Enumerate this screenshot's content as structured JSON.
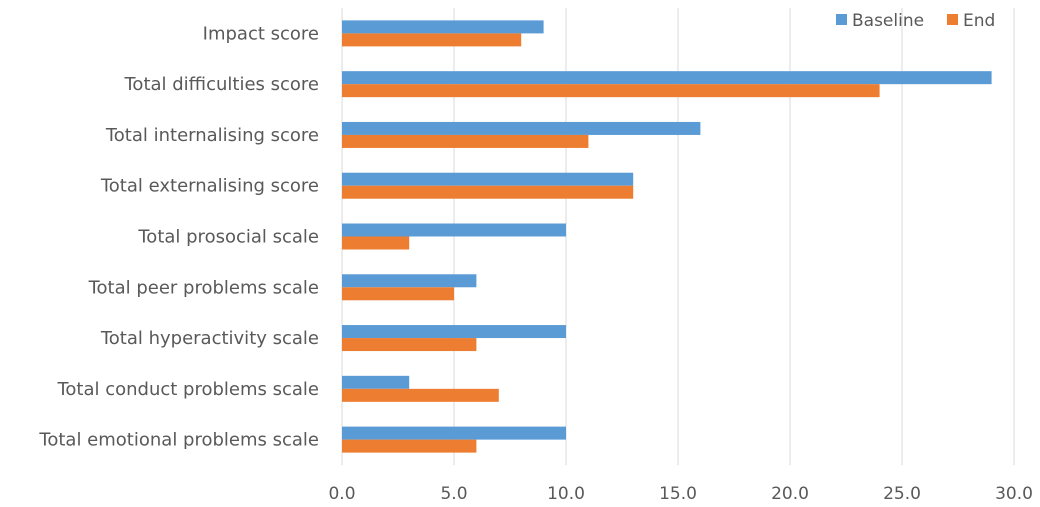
{
  "chart_data": {
    "type": "bar",
    "orientation": "horizontal",
    "title": "",
    "xlabel": "",
    "ylabel": "",
    "categories": [
      "Impact score",
      "Total difficulties score",
      "Total internalising score",
      "Total externalising score",
      "Total prosocial scale",
      "Total peer problems scale",
      "Total hyperactivity scale",
      "Total conduct problems scale",
      "Total emotional problems scale"
    ],
    "series": [
      {
        "name": "Baseline",
        "color": "#5b9bd5",
        "values": [
          9,
          29,
          16,
          13,
          10,
          6,
          10,
          3,
          10
        ]
      },
      {
        "name": "End",
        "color": "#ed7d31",
        "values": [
          8,
          24,
          11,
          13,
          3,
          5,
          6,
          7,
          6
        ]
      }
    ],
    "xlim": [
      0,
      30
    ],
    "xticks": [
      "0.0",
      "5.0",
      "10.0",
      "15.0",
      "20.0",
      "25.0",
      "30.0"
    ],
    "grid": true,
    "legend_position": "top-right"
  }
}
